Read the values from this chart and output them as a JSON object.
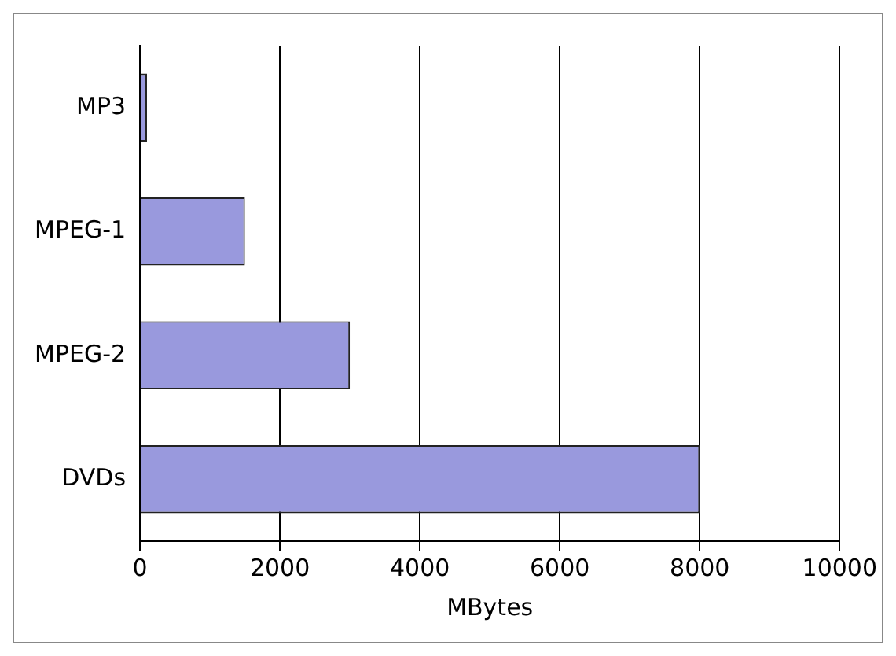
{
  "chart_data": {
    "type": "bar",
    "orientation": "horizontal",
    "categories": [
      "MP3",
      "MPEG-1",
      "MPEG-2",
      "DVDs"
    ],
    "values": [
      100,
      1500,
      3000,
      8000
    ],
    "color": "#9999dd",
    "xlabel": "MBytes",
    "xlim": [
      0,
      10000
    ],
    "xticks": [
      0,
      2000,
      4000,
      6000,
      8000,
      10000
    ],
    "grid": "x",
    "legend": false
  }
}
